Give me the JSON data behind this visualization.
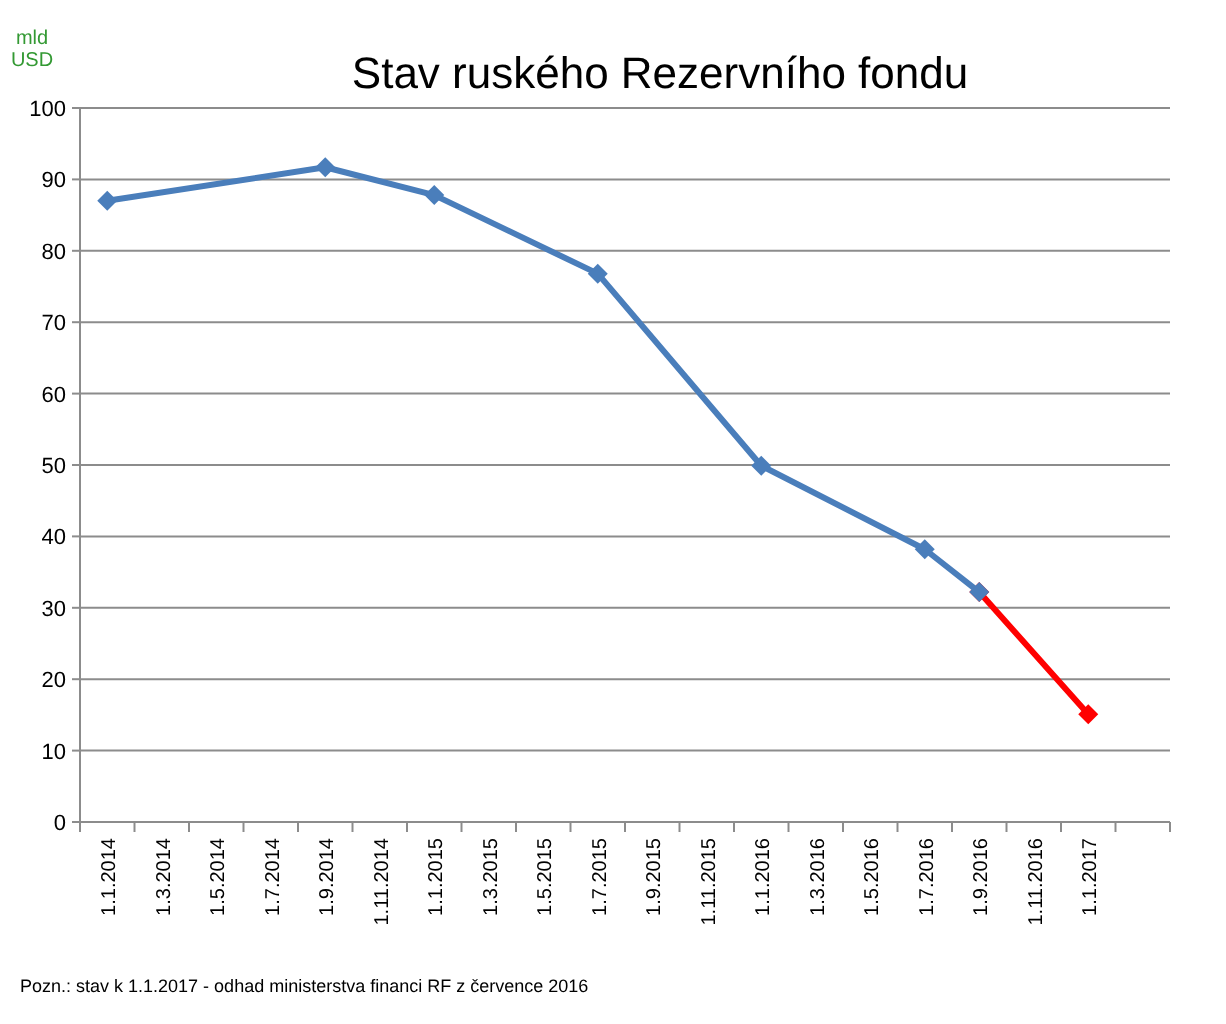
{
  "chart_data": {
    "type": "line",
    "title": "Stav ruského Rezervního fondu",
    "ylabel": "mld USD",
    "categories": [
      "1.1.2014",
      "1.3.2014",
      "1.5.2014",
      "1.7.2014",
      "1.9.2014",
      "1.11.2014",
      "1.1.2015",
      "1.3.2015",
      "1.5.2015",
      "1.7.2015",
      "1.9.2015",
      "1.11.2015",
      "1.1.2016",
      "1.3.2016",
      "1.5.2016",
      "1.7.2016",
      "1.9.2016",
      "1.11.2016",
      "1.1.2017",
      null
    ],
    "series": [
      {
        "color": "#4a7ebb",
        "values": [
          87,
          null,
          null,
          null,
          91.7,
          null,
          87.8,
          null,
          null,
          76.8,
          null,
          null,
          49.9,
          null,
          null,
          38.2,
          32.2,
          null,
          null,
          null
        ]
      },
      {
        "color": "#ff0000",
        "values": [
          null,
          null,
          null,
          null,
          null,
          null,
          null,
          null,
          null,
          null,
          null,
          null,
          null,
          null,
          null,
          null,
          32.2,
          null,
          15.1,
          null
        ]
      }
    ],
    "ylim": [
      0,
      100
    ],
    "yticks": [
      0,
      10,
      20,
      30,
      40,
      50,
      60,
      70,
      80,
      90,
      100
    ],
    "grid": "y",
    "marker": "diamond",
    "line_style": "solid",
    "annotations": [
      "Pozn.: stav k 1.1.2017 - odhad ministerstva financi RF z července 2016"
    ]
  }
}
